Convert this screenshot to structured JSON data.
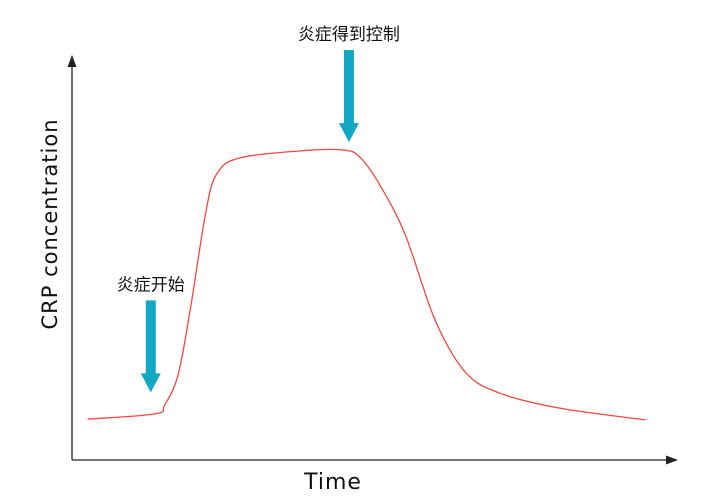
{
  "chart_data": {
    "type": "line",
    "title": "",
    "xlabel": "Time",
    "ylabel": "CRP concentration",
    "xlim": [
      0,
      100
    ],
    "ylim": [
      0,
      100
    ],
    "grid": false,
    "ticks": false,
    "series": [
      {
        "color": "#f0483e",
        "points": [
          [
            2.6,
            10.1
          ],
          [
            13.7,
            11.4
          ],
          [
            15.3,
            13.6
          ],
          [
            17.5,
            21
          ],
          [
            19.5,
            37
          ],
          [
            22,
            60.5
          ],
          [
            23.8,
            70.4
          ],
          [
            27.7,
            74.6
          ],
          [
            39.3,
            76.5
          ],
          [
            45,
            76.5
          ],
          [
            47.5,
            74.8
          ],
          [
            50.8,
            67.9
          ],
          [
            55,
            55.6
          ],
          [
            59.9,
            34.6
          ],
          [
            64.9,
            21.7
          ],
          [
            70.6,
            16.5
          ],
          [
            80.5,
            12.8
          ],
          [
            94.6,
            9.9
          ]
        ]
      }
    ],
    "annotations": [
      {
        "text": "炎症开始",
        "x": 13,
        "y": 16.7,
        "arrow_color": "#12a8c4"
      },
      {
        "text": "炎症得到控制",
        "x": 45.7,
        "y": 78.5,
        "arrow_color": "#12a8c4"
      }
    ],
    "axis_color": "#222222"
  }
}
